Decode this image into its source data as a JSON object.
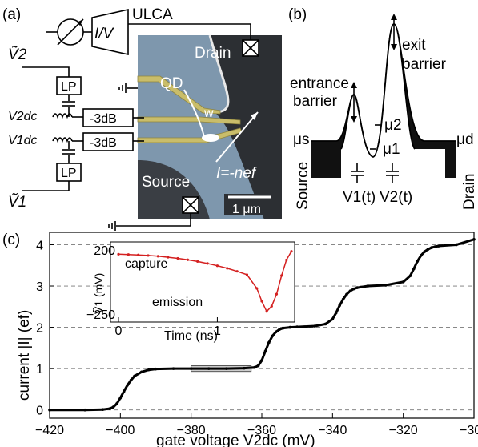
{
  "panel_labels": {
    "a": "(a)",
    "b": "(b)",
    "c": "(c)"
  },
  "panel_a": {
    "amplifier_label": "ULCA",
    "amplifier_symbol": "I/V",
    "drain_label": "Drain",
    "source_label": "Source",
    "qd_label": "QD",
    "w_label": "w",
    "current_label": "I=-nef",
    "scalebar_label": "1 μm",
    "lowpass_top": "LP",
    "lowpass_bottom": "LP",
    "attenuator_top": "-3dB",
    "attenuator_bottom": "-3dB",
    "v2_ac": "Ṽ2",
    "v2_dc": "V2dc",
    "v1_dc": "V1dc",
    "v1_ac": "Ṽ1",
    "colors": {
      "substrate": "#7e97ad",
      "gates": "#c9bd6a",
      "dark": "#2c2f33"
    }
  },
  "panel_b": {
    "entrance": [
      "entrance",
      "barrier"
    ],
    "exit": [
      "exit",
      "barrier"
    ],
    "mu_s": "μs",
    "mu_d": "μd",
    "mu_1": "μ1",
    "mu_2": "μ2",
    "source": "Source",
    "drain": "Drain",
    "v1t": "V1(t)",
    "v2t": "V2(t)"
  },
  "chart_data": {
    "type": "line",
    "xlabel": "gate voltage V2dc (mV)",
    "ylabel": "current |I| (ef)",
    "xlim": [
      -420,
      -300
    ],
    "ylim": [
      -0.2,
      4.3
    ],
    "xticks": [
      -420,
      -400,
      -380,
      -360,
      -340,
      -320,
      -300
    ],
    "yticks": [
      0,
      1,
      2,
      3,
      4
    ],
    "dashed_levels": [
      0,
      1,
      2,
      3,
      4
    ],
    "highlight_box": {
      "x": [
        -380,
        -363
      ],
      "y": [
        0.93,
        1.07
      ]
    },
    "series": [
      {
        "color": "#000000",
        "x": [
          -420,
          -410,
          -405,
          -403,
          -402,
          -401,
          -400,
          -399,
          -398,
          -397,
          -396,
          -394,
          -392,
          -390,
          -385,
          -380,
          -375,
          -370,
          -365,
          -362,
          -361,
          -360,
          -359,
          -358,
          -357,
          -356,
          -355,
          -354,
          -352,
          -350,
          -345,
          -342,
          -340,
          -339,
          -338,
          -337,
          -336,
          -335,
          -334,
          -333,
          -330,
          -325,
          -320,
          -318,
          -317,
          -316,
          -315,
          -314,
          -313,
          -312,
          -311,
          -310,
          -305,
          -300
        ],
        "y": [
          0,
          0,
          0.01,
          0.03,
          0.07,
          0.15,
          0.29,
          0.45,
          0.6,
          0.72,
          0.82,
          0.92,
          0.97,
          0.99,
          1.0,
          1.0,
          1.0,
          1.0,
          1.01,
          1.03,
          1.07,
          1.2,
          1.42,
          1.63,
          1.79,
          1.89,
          1.95,
          1.98,
          2.0,
          2.01,
          2.03,
          2.08,
          2.2,
          2.35,
          2.53,
          2.68,
          2.8,
          2.88,
          2.93,
          2.96,
          3.0,
          3.02,
          3.1,
          3.25,
          3.42,
          3.6,
          3.74,
          3.83,
          3.89,
          3.93,
          3.95,
          3.97,
          4.0,
          4.13
        ]
      }
    ],
    "inset": {
      "type": "line",
      "xlabel": "Time (ns)",
      "ylabel": "Ṽ1 (mV)",
      "xlim": [
        0,
        1.75
      ],
      "ylim": [
        -250,
        200
      ],
      "xticks": [
        0,
        1
      ],
      "yticks": [
        200,
        -250
      ],
      "annotations": [
        "capture",
        "emission"
      ],
      "series": [
        {
          "color": "#d42020",
          "x": [
            0,
            0.1,
            0.2,
            0.3,
            0.4,
            0.5,
            0.6,
            0.7,
            0.8,
            0.9,
            1.0,
            1.1,
            1.2,
            1.3,
            1.4,
            1.45,
            1.5,
            1.55,
            1.6,
            1.65,
            1.7,
            1.75
          ],
          "y": [
            170,
            168,
            165,
            161,
            156,
            149,
            141,
            131,
            119,
            105,
            89,
            71,
            50,
            26,
            -70,
            -160,
            -232,
            -195,
            -110,
            20,
            130,
            190
          ]
        }
      ]
    }
  }
}
